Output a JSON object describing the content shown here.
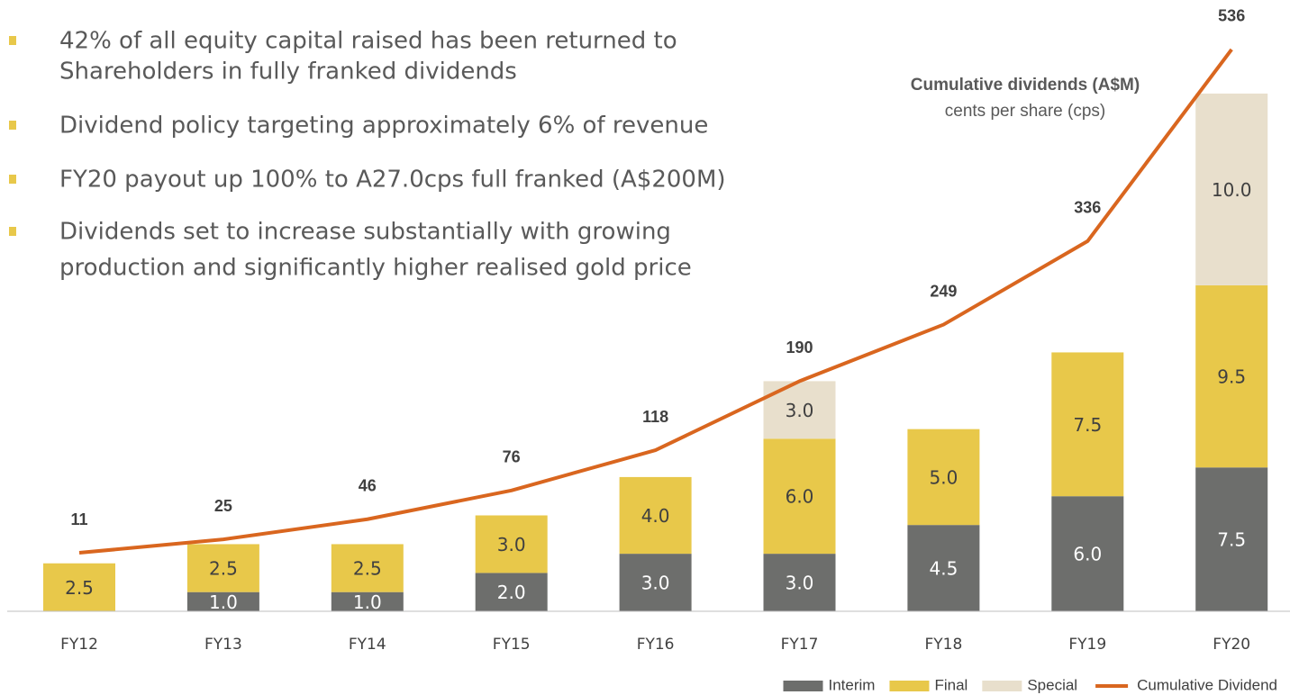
{
  "bullets": [
    [
      "42% of all equity capital raised has been returned to",
      "Shareholders in fully franked dividends"
    ],
    [
      "Dividend policy targeting approximately 6% of revenue"
    ],
    [
      "FY20 payout up 100% to A27.0cps full franked (A$200M)"
    ],
    [
      "Dividends set to increase substantially with growing",
      "production and significantly higher realised gold price"
    ]
  ],
  "chart_data": {
    "type": "stacked_bar_line",
    "annotations": [
      "Cumulative dividends (A$M)",
      "cents per share (cps)"
    ],
    "categories": [
      "FY12",
      "FY13",
      "FY14",
      "FY15",
      "FY16",
      "FY17",
      "FY18",
      "FY19",
      "FY20"
    ],
    "series": [
      {
        "name": "Interim",
        "color": "#6d6e6c",
        "type": "bar",
        "values": [
          null,
          1,
          1,
          2,
          3,
          3,
          4.5,
          6,
          7.5
        ],
        "value_labels": [
          null,
          "1.0",
          "1.0",
          "2.0",
          "3.0",
          "3.0",
          "4.5",
          "6.0",
          "7.5"
        ]
      },
      {
        "name": "Final",
        "color": "#e8c84a",
        "type": "bar",
        "values": [
          2.5,
          2.5,
          2.5,
          3,
          4,
          6,
          5,
          7.5,
          9.5
        ],
        "value_labels": [
          "2.5",
          "2.5",
          "2.5",
          "3.0",
          "4.0",
          "6.0",
          "5.0",
          "7.5",
          "9.5"
        ]
      },
      {
        "name": "Special",
        "color": "#e8dfcc",
        "type": "bar",
        "values": [
          null,
          null,
          null,
          null,
          null,
          3,
          null,
          null,
          10
        ],
        "value_labels": [
          null,
          null,
          null,
          null,
          null,
          "3.0",
          null,
          null,
          "10.0"
        ]
      },
      {
        "name": "Cumulative Dividend",
        "color": "#d9661f",
        "type": "line",
        "axis": "y2",
        "values": [
          11,
          25,
          46,
          76,
          118,
          190,
          249,
          336,
          536
        ]
      }
    ],
    "ylim": [
      0,
      30
    ],
    "y2lim": [
      -50,
      550
    ]
  }
}
